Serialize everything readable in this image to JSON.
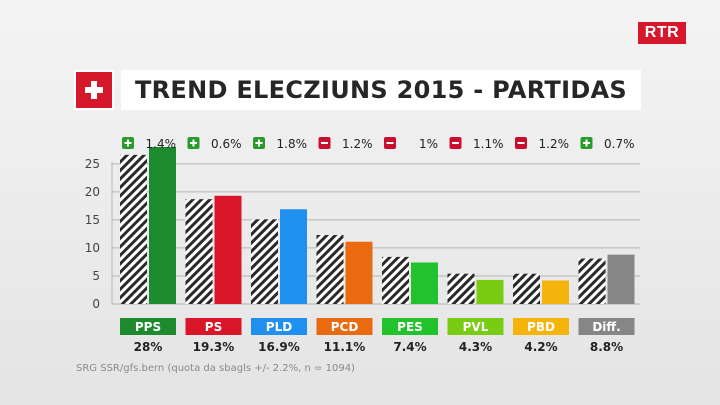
{
  "brand": {
    "logo_text": "RTR",
    "logo_color": "#d5182b"
  },
  "title": "TREND ELECZIUNS 2015 - PARTIDAS",
  "source": "SRG SSR/gfs.bern (quota da sbagls +/- 2.2%, n = 1094)",
  "chart_data": {
    "type": "bar",
    "categories": [
      "PPS",
      "PS",
      "PLD",
      "PCD",
      "PES",
      "PVL",
      "PBD",
      "Diff."
    ],
    "colors": [
      "#1e8a2e",
      "#d9152a",
      "#1f8ff0",
      "#ea6a10",
      "#22c22d",
      "#78cc14",
      "#f5b40c",
      "#868686"
    ],
    "series": [
      {
        "values": [
          26.6,
          18.7,
          15.1,
          12.3,
          8.4,
          5.4,
          5.4,
          8.1
        ],
        "pattern": "hatched"
      },
      {
        "values": [
          28.0,
          19.3,
          16.9,
          11.1,
          7.4,
          4.3,
          4.2,
          8.8
        ],
        "pattern": "solid"
      }
    ],
    "value_labels": [
      "28%",
      "19.3%",
      "16.9%",
      "11.1%",
      "7.4%",
      "4.3%",
      "4.2%",
      "8.8%"
    ],
    "changes": [
      {
        "sign": "+",
        "text": "1.4%"
      },
      {
        "sign": "+",
        "text": "0.6%"
      },
      {
        "sign": "+",
        "text": "1.8%"
      },
      {
        "sign": "-",
        "text": "1.2%"
      },
      {
        "sign": "-",
        "text": "1%"
      },
      {
        "sign": "-",
        "text": "1.1%"
      },
      {
        "sign": "-",
        "text": "1.2%"
      },
      {
        "sign": "+",
        "text": "0.7%"
      }
    ],
    "change_colors": {
      "+": "#2a9a2a",
      "-": "#c8102e"
    },
    "yticks": [
      0,
      5,
      10,
      15,
      20,
      25
    ],
    "ylim": [
      0,
      28
    ],
    "grid": true,
    "xlabel": "",
    "ylabel": ""
  }
}
